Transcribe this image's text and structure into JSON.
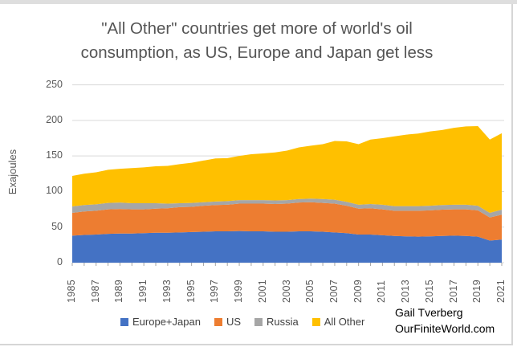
{
  "title": {
    "line1": "\"All Other\" countries get more of world's oil",
    "line2": "consumption, as US, Europe and Japan get less"
  },
  "attribution": {
    "line1": "Gail Tverberg",
    "line2": "OurFiniteWorld.com"
  },
  "chart_data": {
    "type": "area",
    "stacked": true,
    "title": "\"All Other\" countries get more of world's oil consumption, as US, Europe and Japan get less",
    "xlabel": "",
    "ylabel": "Exajoules",
    "ylim": [
      0,
      250
    ],
    "yticks": [
      0,
      50,
      100,
      150,
      200,
      250
    ],
    "grid": "horizontal",
    "legend_position": "bottom",
    "x": [
      1985,
      1986,
      1987,
      1988,
      1989,
      1990,
      1991,
      1992,
      1993,
      1994,
      1995,
      1996,
      1997,
      1998,
      1999,
      2000,
      2001,
      2002,
      2003,
      2004,
      2005,
      2006,
      2007,
      2008,
      2009,
      2010,
      2011,
      2012,
      2013,
      2014,
      2015,
      2016,
      2017,
      2018,
      2019,
      2020,
      2021
    ],
    "xtick_labels": [
      "1985",
      "1987",
      "1989",
      "1991",
      "1993",
      "1995",
      "1997",
      "1999",
      "2001",
      "2003",
      "2005",
      "2007",
      "2009",
      "2011",
      "2013",
      "2015",
      "2017",
      "2019",
      "2021"
    ],
    "series": [
      {
        "name": "Europe+Japan",
        "color": "#4472C4",
        "values": [
          38,
          39,
          39.5,
          40.5,
          41,
          41,
          41.5,
          42,
          42,
          42.5,
          43,
          43.5,
          44,
          44,
          44.5,
          44,
          44,
          43.5,
          43.5,
          44,
          44,
          43.5,
          42.5,
          41.5,
          39.5,
          39.5,
          38.5,
          37.5,
          37,
          36.5,
          37,
          37.5,
          38,
          37.5,
          36.5,
          31,
          32.5
        ]
      },
      {
        "name": "US",
        "color": "#ED7D31",
        "values": [
          32,
          33,
          33.5,
          34.5,
          34.5,
          34,
          33.5,
          34,
          34.5,
          35.5,
          35.5,
          36.5,
          37,
          37.5,
          38.5,
          39,
          39,
          39,
          39.5,
          40.5,
          41,
          40.5,
          40.5,
          38.5,
          36.5,
          37,
          36.5,
          35.5,
          36,
          36.5,
          36.5,
          37,
          37,
          37.5,
          37,
          32.5,
          35
        ]
      },
      {
        "name": "Russia",
        "color": "#A6A6A6",
        "values": [
          9,
          9,
          9,
          9,
          9,
          8.5,
          8.5,
          7.5,
          6.5,
          5.5,
          5.5,
          5,
          5,
          5,
          5,
          5,
          5,
          5,
          5,
          5,
          5,
          5.5,
          5.5,
          5.5,
          5.5,
          6,
          6.5,
          6.5,
          6.5,
          6.5,
          6.5,
          6.5,
          6.5,
          6.5,
          6.5,
          6.5,
          7
        ]
      },
      {
        "name": "All Other",
        "color": "#FFC000",
        "values": [
          43,
          44,
          45,
          46.5,
          47.5,
          49.5,
          50.5,
          52,
          53,
          55,
          56.5,
          58.5,
          60.5,
          60.5,
          62,
          64.5,
          65.5,
          67.5,
          69.5,
          72.5,
          74.5,
          77,
          82.5,
          85,
          85,
          90.5,
          93.5,
          98,
          100.5,
          102,
          104.5,
          105.5,
          108,
          110,
          112,
          103,
          107.5
        ]
      }
    ],
    "annotations": [
      "Gail Tverberg",
      "OurFiniteWorld.com"
    ]
  },
  "colors": {
    "gridline": "#d9d9d9",
    "axis_tick": "#a6a6a6",
    "title_text": "#555555",
    "axis_text": "#595959",
    "legend_text": "#404040"
  }
}
